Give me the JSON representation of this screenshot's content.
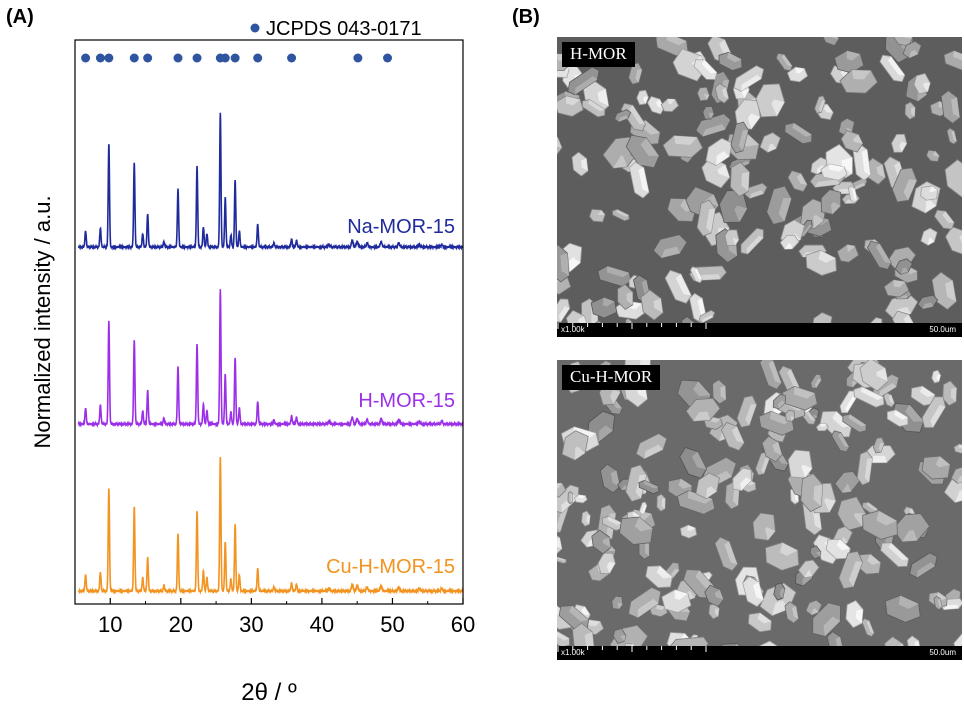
{
  "panel_a": {
    "label": "(A)"
  },
  "panel_b": {
    "label": "(B)"
  },
  "chart_data": {
    "type": "line",
    "xlabel": "2θ / º",
    "ylabel": "Normalized intensity / a.u.",
    "xlim": [
      5,
      60
    ],
    "xticks": [
      10,
      20,
      30,
      40,
      50,
      60
    ],
    "yticks_shown": false,
    "reference": {
      "name": "JCPDS 043-0171",
      "color": "#2f55a0",
      "positions": [
        6.5,
        8.6,
        9.8,
        13.4,
        15.3,
        19.6,
        22.3,
        25.6,
        26.3,
        27.7,
        30.9,
        35.7,
        45.1,
        49.3
      ]
    },
    "peaks": [
      {
        "x": 6.5,
        "i": 0.12
      },
      {
        "x": 8.6,
        "i": 0.14
      },
      {
        "x": 9.8,
        "i": 0.77
      },
      {
        "x": 13.4,
        "i": 0.63
      },
      {
        "x": 14.6,
        "i": 0.1
      },
      {
        "x": 15.3,
        "i": 0.25
      },
      {
        "x": 17.6,
        "i": 0.04
      },
      {
        "x": 19.6,
        "i": 0.43
      },
      {
        "x": 22.3,
        "i": 0.6
      },
      {
        "x": 23.2,
        "i": 0.15
      },
      {
        "x": 23.7,
        "i": 0.1
      },
      {
        "x": 25.6,
        "i": 1.0
      },
      {
        "x": 26.3,
        "i": 0.37
      },
      {
        "x": 27.1,
        "i": 0.09
      },
      {
        "x": 27.7,
        "i": 0.5
      },
      {
        "x": 28.3,
        "i": 0.12
      },
      {
        "x": 30.9,
        "i": 0.17
      },
      {
        "x": 33.2,
        "i": 0.03
      },
      {
        "x": 35.7,
        "i": 0.06
      },
      {
        "x": 36.4,
        "i": 0.05
      },
      {
        "x": 41.0,
        "i": 0.02
      },
      {
        "x": 44.3,
        "i": 0.05
      },
      {
        "x": 45.0,
        "i": 0.04
      },
      {
        "x": 46.4,
        "i": 0.03
      },
      {
        "x": 48.4,
        "i": 0.04
      },
      {
        "x": 50.9,
        "i": 0.03
      },
      {
        "x": 53.8,
        "i": 0.02
      },
      {
        "x": 57.0,
        "i": 0.02
      }
    ],
    "series": [
      {
        "name": "Na-MOR-15",
        "color": "#1f2a9c"
      },
      {
        "name": "H-MOR-15",
        "color": "#9b30e8"
      },
      {
        "name": "Cu-H-MOR-15",
        "color": "#f39320"
      }
    ]
  },
  "sem_images": [
    {
      "label": "H-MOR",
      "magnification": "x1.00k",
      "scale": "50.0um"
    },
    {
      "label": "Cu-H-MOR",
      "magnification": "x1.00k",
      "scale": "50.0um"
    }
  ]
}
